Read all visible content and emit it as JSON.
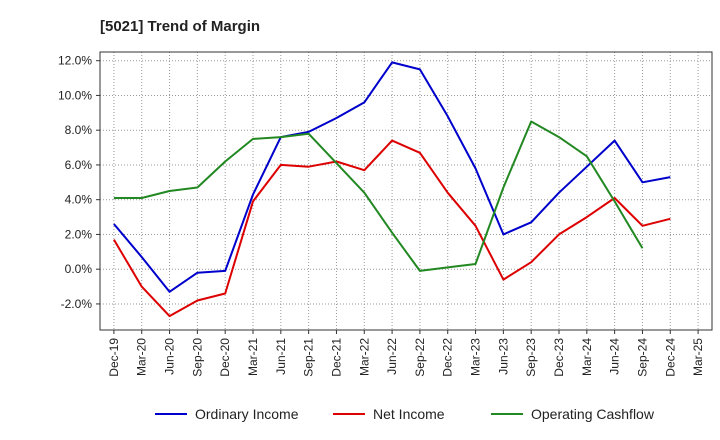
{
  "chart_data": {
    "type": "line",
    "title": "[5021]  Trend of Margin",
    "xlabel": "",
    "ylabel": "",
    "categories": [
      "Dec-19",
      "Mar-20",
      "Jun-20",
      "Sep-20",
      "Dec-20",
      "Mar-21",
      "Jun-21",
      "Sep-21",
      "Dec-21",
      "Mar-22",
      "Jun-22",
      "Sep-22",
      "Dec-22",
      "Mar-23",
      "Jun-23",
      "Sep-23",
      "Dec-23",
      "Mar-24",
      "Jun-24",
      "Sep-24",
      "Dec-24",
      "Mar-25"
    ],
    "yticks": [
      "12.0%",
      "10.0%",
      "8.0%",
      "6.0%",
      "4.0%",
      "2.0%",
      "0.0%",
      "-2.0%"
    ],
    "ylim": [
      -3.5,
      12.5
    ],
    "grid": true,
    "legend_position": "bottom",
    "series": [
      {
        "name": "Ordinary Income",
        "color": "#0000cc",
        "values": [
          2.6,
          0.7,
          -1.3,
          -0.2,
          -0.1,
          4.3,
          7.6,
          7.9,
          8.7,
          9.6,
          11.9,
          11.5,
          8.8,
          5.8,
          2.0,
          2.7,
          4.4,
          5.9,
          7.4,
          5.0,
          5.3,
          null
        ]
      },
      {
        "name": "Net Income",
        "color": "#dd0000",
        "values": [
          1.7,
          -1.0,
          -2.7,
          -1.8,
          -1.4,
          3.9,
          6.0,
          5.9,
          6.2,
          5.7,
          7.4,
          6.7,
          4.4,
          2.5,
          -0.6,
          0.4,
          2.0,
          3.0,
          4.1,
          2.5,
          2.9,
          null
        ]
      },
      {
        "name": "Operating Cashflow",
        "color": "#228822",
        "values": [
          4.1,
          4.1,
          4.5,
          4.7,
          6.2,
          7.5,
          7.6,
          7.8,
          6.1,
          4.4,
          2.1,
          -0.1,
          0.1,
          0.3,
          4.7,
          8.5,
          7.6,
          6.5,
          3.9,
          1.2,
          null,
          null
        ]
      }
    ]
  }
}
